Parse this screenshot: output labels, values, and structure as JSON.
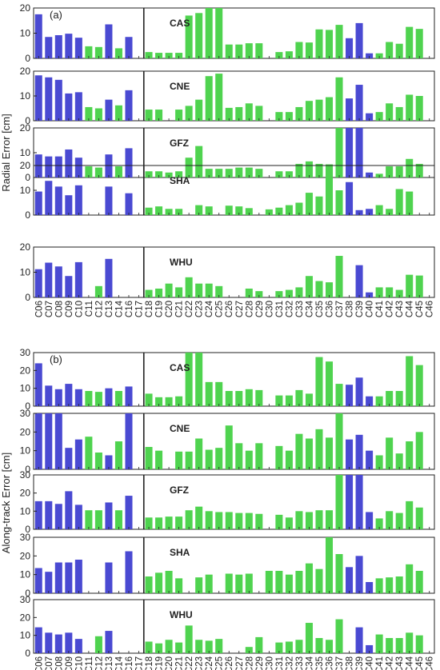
{
  "figure": {
    "colors": {
      "blue": "#4a4ad2",
      "green": "#4fd34f",
      "axis": "#222222"
    },
    "satellites": [
      "C06",
      "C07",
      "C08",
      "C09",
      "C10",
      "C11",
      "C12",
      "C13",
      "C14",
      "C16",
      "C17",
      "C18",
      "C19",
      "C20",
      "C21",
      "C22",
      "C23",
      "C24",
      "C25",
      "C26",
      "C27",
      "C28",
      "C29",
      "C30",
      "C31",
      "C32",
      "C33",
      "C34",
      "C35",
      "C36",
      "C37",
      "C38",
      "C39",
      "C40",
      "C41",
      "C42",
      "C43",
      "C44",
      "C45",
      "C46"
    ],
    "bar_colors": [
      "blue",
      "blue",
      "blue",
      "blue",
      "blue",
      "green",
      "green",
      "blue",
      "green",
      "blue",
      "green",
      "green",
      "green",
      "green",
      "green",
      "green",
      "green",
      "green",
      "green",
      "green",
      "green",
      "green",
      "green",
      "green",
      "green",
      "green",
      "green",
      "green",
      "green",
      "green",
      "green",
      "blue",
      "blue",
      "blue",
      "green",
      "green",
      "green",
      "green",
      "green",
      "green"
    ]
  },
  "chart_data": [
    {
      "type": "bar",
      "panel_label": "(a)",
      "ylabel": "Radial Error [cm]",
      "subplots": [
        {
          "name": "CAS",
          "ylim": [
            0,
            20
          ],
          "yticks": [
            0,
            10,
            20
          ],
          "values": [
            17.5,
            8.5,
            9.2,
            9.8,
            8.2,
            4.8,
            4.5,
            13.5,
            4,
            8.5,
            0,
            2.5,
            2.2,
            2.2,
            2.2,
            17,
            18,
            20,
            20,
            5.5,
            5.5,
            6,
            6,
            0,
            2.5,
            2.8,
            6.5,
            6.3,
            11.5,
            11.3,
            13.3,
            8,
            14,
            2,
            2,
            6.5,
            5.8,
            12.5,
            11.7,
            0
          ]
        },
        {
          "name": "CNE",
          "ylim": [
            0,
            20
          ],
          "yticks": [
            0,
            10,
            20
          ],
          "values": [
            18.3,
            17.5,
            16.5,
            11,
            11.5,
            5.5,
            5,
            8.5,
            6.2,
            12.3,
            0,
            4.5,
            4.5,
            0,
            4.5,
            6,
            8.5,
            18,
            19,
            5.2,
            5.5,
            7,
            6,
            0,
            3.5,
            3.5,
            5.5,
            8,
            8.5,
            9.5,
            17.5,
            9,
            14.5,
            3,
            3.5,
            7,
            5.5,
            10.5,
            10,
            0
          ]
        },
        {
          "name": "GFZ",
          "ylim": [
            0,
            20
          ],
          "yticks": [
            0,
            10,
            20
          ],
          "values": [
            9.3,
            8.5,
            8.5,
            11.3,
            8,
            4.5,
            4,
            9.3,
            4.5,
            11.8,
            0,
            2.5,
            2.5,
            2,
            2.5,
            8,
            12.7,
            3.5,
            3.5,
            3.5,
            4,
            4,
            3.5,
            0,
            2.5,
            2.5,
            5.5,
            6.5,
            5.5,
            5.3,
            20,
            20,
            20,
            2,
            1.5,
            4.5,
            4.5,
            7.5,
            5.5,
            0
          ]
        },
        {
          "name": "SHA",
          "ylim": [
            0,
            20
          ],
          "yticks": [
            0,
            10,
            20
          ],
          "values": [
            9.5,
            13.8,
            11.5,
            8,
            12,
            0,
            0,
            11.5,
            0,
            8.8,
            0,
            3,
            3.5,
            2.5,
            2.5,
            0,
            4,
            3.5,
            0,
            3.8,
            3.5,
            2.8,
            0,
            2.3,
            3,
            4,
            5,
            9,
            7.5,
            16.5,
            10,
            13.3,
            2,
            2.5,
            4,
            2.5,
            10.5,
            9.5,
            0,
            0
          ]
        },
        {
          "name": "WHU",
          "ylim": [
            0,
            20
          ],
          "yticks": [
            0,
            10,
            20
          ],
          "values": [
            11.2,
            13.8,
            12.3,
            8.5,
            14,
            0,
            4.5,
            15.3,
            0,
            0,
            0,
            3,
            3.5,
            5.5,
            4,
            8,
            5.5,
            5.5,
            4.5,
            0,
            0,
            3.5,
            2.5,
            0,
            2.5,
            3,
            4,
            8.5,
            6.5,
            6,
            16.5,
            0,
            12.8,
            2,
            4,
            4,
            3,
            9,
            8.7,
            0
          ]
        }
      ]
    },
    {
      "type": "bar",
      "panel_label": "(b)",
      "ylabel": "Along-track Error [cm]",
      "subplots": [
        {
          "name": "CAS",
          "ylim": [
            0,
            30
          ],
          "yticks": [
            0,
            10,
            20,
            30
          ],
          "values": [
            24,
            11.5,
            9.5,
            12.5,
            9.5,
            8.5,
            8,
            10,
            8.5,
            11,
            0,
            7,
            5,
            5,
            5.5,
            30,
            30,
            13.5,
            13.5,
            8.5,
            8.5,
            9.5,
            9,
            0,
            6,
            6,
            9,
            7,
            27.5,
            25,
            12.5,
            12,
            16,
            5.5,
            5.5,
            8.5,
            8.5,
            28,
            23,
            0
          ]
        },
        {
          "name": "CNE",
          "ylim": [
            0,
            30
          ],
          "yticks": [
            0,
            10,
            20,
            30
          ],
          "values": [
            30,
            30,
            30,
            11.5,
            16,
            17.5,
            9,
            7.5,
            15,
            30,
            0,
            12,
            10,
            0,
            9.5,
            9.5,
            16.5,
            10.5,
            11.5,
            23.5,
            14,
            10,
            14,
            0,
            12.5,
            10,
            19,
            16.5,
            21.5,
            17,
            30,
            16,
            18.5,
            10,
            7.5,
            17,
            8.5,
            15,
            20,
            0
          ]
        },
        {
          "name": "GFZ",
          "ylim": [
            0,
            30
          ],
          "yticks": [
            0,
            10,
            20,
            30
          ],
          "values": [
            15.5,
            15.5,
            14,
            21,
            13.5,
            10.5,
            10.5,
            14.8,
            10.5,
            18.5,
            0,
            6.5,
            6.5,
            7,
            7,
            10.5,
            12.5,
            10,
            9.5,
            9.5,
            9,
            9,
            8.5,
            0,
            8,
            6.5,
            10,
            9.5,
            10.5,
            10.5,
            30,
            30,
            30,
            9.5,
            6,
            10,
            9,
            15.5,
            12,
            0
          ]
        },
        {
          "name": "SHA",
          "ylim": [
            0,
            30
          ],
          "yticks": [
            0,
            10,
            20,
            30
          ],
          "values": [
            13.5,
            11.5,
            16.5,
            16.5,
            18,
            0,
            0,
            16.5,
            0,
            22.5,
            0,
            9,
            11,
            12,
            8,
            0,
            8.5,
            10,
            0,
            10.5,
            10,
            10.5,
            0,
            12,
            12,
            10,
            12,
            16,
            13,
            30,
            21,
            14,
            20,
            6,
            8,
            8.5,
            9,
            15.5,
            12,
            0
          ]
        },
        {
          "name": "WHU",
          "ylim": [
            0,
            30
          ],
          "yticks": [
            0,
            10,
            20,
            30
          ],
          "values": [
            14.5,
            11.5,
            10.5,
            11.5,
            8,
            0,
            9.5,
            12.5,
            0,
            0,
            0,
            6.5,
            5.5,
            7.5,
            6,
            15.5,
            7.5,
            7,
            8,
            0,
            0,
            3.5,
            9,
            0,
            6,
            6.5,
            7.5,
            17,
            8.5,
            7.5,
            19,
            0,
            14.5,
            4.5,
            10.5,
            8.5,
            8.5,
            11.5,
            10,
            0
          ]
        }
      ]
    }
  ]
}
